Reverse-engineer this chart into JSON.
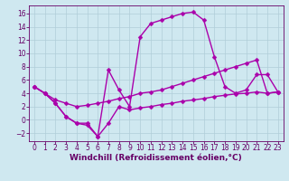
{
  "xlabel": "Windchill (Refroidissement éolien,°C)",
  "bg_color": "#cfe8f0",
  "line_color": "#aa00aa",
  "grid_color": "#b0cdd8",
  "xlim": [
    -0.5,
    23.5
  ],
  "ylim": [
    -3.2,
    17.2
  ],
  "xticks": [
    0,
    1,
    2,
    3,
    4,
    5,
    6,
    7,
    8,
    9,
    10,
    11,
    12,
    13,
    14,
    15,
    16,
    17,
    18,
    19,
    20,
    21,
    22,
    23
  ],
  "yticks": [
    -2,
    0,
    2,
    4,
    6,
    8,
    10,
    12,
    14,
    16
  ],
  "line_upper_x": [
    0,
    1,
    2,
    3,
    4,
    5,
    6,
    7,
    8,
    9,
    10,
    11,
    12,
    13,
    14,
    15,
    16,
    17,
    18,
    19,
    20,
    21,
    22,
    23
  ],
  "line_upper_y": [
    5,
    4,
    2.5,
    0.5,
    -0.5,
    -0.5,
    -2.5,
    7.5,
    4.5,
    2,
    12.5,
    14.5,
    15,
    15.5,
    16,
    16.2,
    15.0,
    9.5,
    5.0,
    4.0,
    4.5,
    6.8,
    6.8,
    4.2
  ],
  "line_lower_x": [
    0,
    1,
    2,
    3,
    4,
    5,
    6,
    7,
    8,
    9,
    10,
    11,
    12,
    13,
    14,
    15,
    16,
    17,
    18,
    19,
    20,
    21,
    22,
    23
  ],
  "line_lower_y": [
    5,
    4,
    2.5,
    0.5,
    -0.5,
    -0.8,
    -2.5,
    -0.5,
    2.0,
    1.5,
    1.8,
    2.0,
    2.3,
    2.5,
    2.8,
    3.0,
    3.2,
    3.5,
    3.7,
    3.9,
    4.0,
    4.2,
    4.0,
    4.2
  ],
  "line_mid_x": [
    0,
    1,
    2,
    3,
    4,
    5,
    6,
    7,
    8,
    9,
    10,
    11,
    12,
    13,
    14,
    15,
    16,
    17,
    18,
    19,
    20,
    21,
    22,
    23
  ],
  "line_mid_y": [
    5,
    4,
    3.0,
    2.5,
    2.0,
    2.2,
    2.5,
    2.8,
    3.2,
    3.5,
    4.0,
    4.2,
    4.5,
    5.0,
    5.5,
    6.0,
    6.5,
    7.0,
    7.5,
    8.0,
    8.5,
    9.0,
    4.0,
    4.2
  ],
  "marker": "D",
  "marker_size": 2.5,
  "linewidth": 1.0,
  "font_color": "#660066",
  "xlabel_fontsize": 6.5,
  "tick_fontsize": 5.5
}
